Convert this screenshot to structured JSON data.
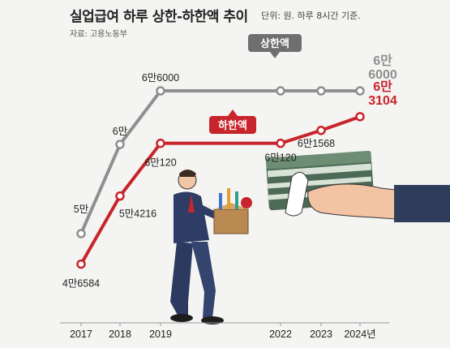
{
  "header": {
    "title": "실업급여 하루 상한-하한액 추이",
    "unit_note": "단위: 원. 하루 8시간 기준.",
    "source": "자료: 고용노동부"
  },
  "colors": {
    "upper": "#8f8f8f",
    "lower": "#c8242b",
    "upper_label_bg": "#6f6f6f",
    "lower_label_bg": "#c8242b"
  },
  "chart_data": {
    "type": "line",
    "x": [
      "2017",
      "2018",
      "2019",
      "2022",
      "2023",
      "2024년"
    ],
    "series": [
      {
        "name": "상한액",
        "values": [
          50000,
          60000,
          66000,
          66000,
          66000,
          66000
        ],
        "labels": [
          "5만",
          "6만",
          "6만6000",
          "",
          "",
          "6만\n6000"
        ]
      },
      {
        "name": "하한액",
        "values": [
          46584,
          54216,
          60120,
          60120,
          61568,
          63104
        ],
        "labels": [
          "4만6584",
          "5만4216",
          "6만120",
          "6만120",
          "6만1568",
          "6만\n3104"
        ]
      }
    ],
    "legend": [
      "상한액",
      "하한액"
    ]
  }
}
